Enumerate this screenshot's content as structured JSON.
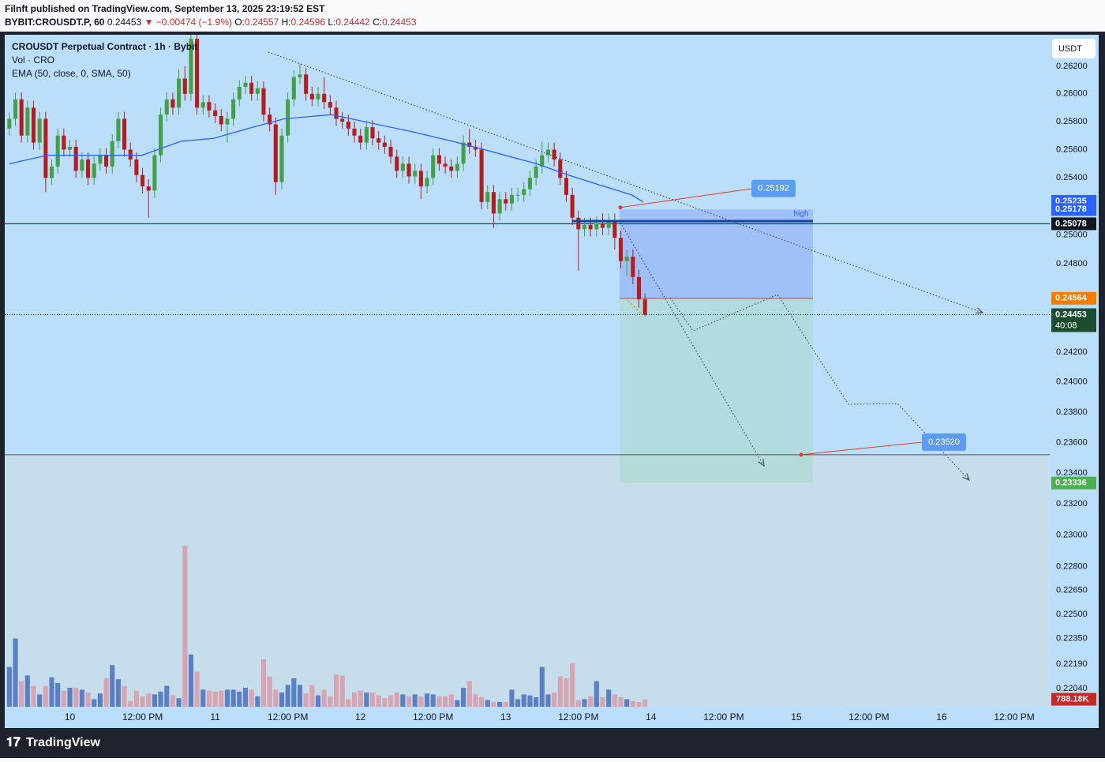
{
  "header": {
    "publisher": "Filnft published on TradingView.com, September 13, 2025 23:19:52 EST",
    "symbol": "BYBIT:CROUSDT.P, 60",
    "last": "0.24453",
    "arrow": "▼",
    "change": "−0.00474 (−1.9%)",
    "ohlc": [
      [
        "O:",
        "0.24557"
      ],
      [
        "H:",
        "0.24596"
      ],
      [
        "L:",
        "0.24442"
      ],
      [
        "C:",
        "0.24453"
      ]
    ]
  },
  "footer": {
    "brand": "TradingView"
  },
  "chart_data": {
    "type": "candlestick",
    "title": "CROUSDT Perpetual Contract · 1h · Bybit",
    "legend_lines": [
      "Vol · CRO",
      "EMA (50, close, 0, SMA, 50)"
    ],
    "currency": "USDT",
    "up_color": "#43a047",
    "down_color": "#b71c1c",
    "x": [
      0,
      1,
      2,
      3,
      4,
      5,
      6,
      7,
      8,
      9,
      10,
      11,
      12,
      13,
      14,
      15,
      16,
      17,
      18,
      19,
      20,
      21,
      22,
      23,
      24,
      25,
      26,
      27,
      28,
      29,
      30,
      31,
      32,
      33,
      34,
      35,
      36,
      37,
      38,
      39,
      40,
      41,
      42,
      43,
      44,
      45,
      46,
      47,
      48,
      49,
      50,
      51,
      52,
      53,
      54,
      55,
      56,
      57,
      58,
      59,
      60,
      61,
      62,
      63,
      64,
      65,
      66,
      67,
      68,
      69,
      70,
      71,
      72,
      73,
      74,
      75,
      76,
      77,
      78,
      79,
      80,
      81,
      82,
      83,
      84,
      85,
      86,
      87,
      88,
      89,
      90,
      91,
      92,
      93,
      94,
      95,
      96,
      97,
      98,
      99,
      100,
      101,
      102,
      103,
      104,
      105
    ],
    "open": [
      0.2575,
      0.2582,
      0.2596,
      0.257,
      0.259,
      0.2565,
      0.2582,
      0.254,
      0.2548,
      0.257,
      0.256,
      0.2562,
      0.2545,
      0.2553,
      0.254,
      0.255,
      0.2556,
      0.2548,
      0.2566,
      0.2582,
      0.256,
      0.2553,
      0.2542,
      0.2534,
      0.2531,
      0.2556,
      0.2585,
      0.2596,
      0.259,
      0.2611,
      0.26,
      0.264,
      0.259,
      0.2594,
      0.2588,
      0.2584,
      0.2578,
      0.2582,
      0.2596,
      0.2605,
      0.2608,
      0.26,
      0.2604,
      0.2585,
      0.2578,
      0.2537,
      0.257,
      0.2596,
      0.2612,
      0.2614,
      0.26,
      0.2596,
      0.26,
      0.2594,
      0.259,
      0.2582,
      0.258,
      0.2575,
      0.257,
      0.2565,
      0.2576,
      0.2568,
      0.2565,
      0.2562,
      0.2555,
      0.2545,
      0.255,
      0.2541,
      0.2545,
      0.2534,
      0.254,
      0.2556,
      0.255,
      0.2548,
      0.2545,
      0.255,
      0.2565,
      0.2562,
      0.256,
      0.2523,
      0.253,
      0.2515,
      0.2525,
      0.2522,
      0.2528,
      0.2528,
      0.2532,
      0.254,
      0.2548,
      0.2556,
      0.256,
      0.2553,
      0.254,
      0.2528,
      0.2512,
      0.2504,
      0.2507,
      0.2504,
      0.2508,
      0.2505,
      0.251,
      0.2498,
      0.2482,
      0.2485,
      0.2471,
      0.24557
    ],
    "high": [
      0.2587,
      0.2601,
      0.2601,
      0.2595,
      0.2595,
      0.2587,
      0.2587,
      0.2553,
      0.2575,
      0.2575,
      0.2567,
      0.2567,
      0.2558,
      0.2558,
      0.2555,
      0.2561,
      0.2561,
      0.2571,
      0.2587,
      0.2587,
      0.2565,
      0.2558,
      0.2547,
      0.2539,
      0.2561,
      0.259,
      0.2601,
      0.2601,
      0.2618,
      0.262,
      0.265,
      0.2645,
      0.2599,
      0.2599,
      0.2593,
      0.2589,
      0.2587,
      0.2601,
      0.261,
      0.2613,
      0.2613,
      0.2609,
      0.2609,
      0.259,
      0.2583,
      0.2575,
      0.2601,
      0.2617,
      0.2622,
      0.2619,
      0.2605,
      0.2605,
      0.2612,
      0.2599,
      0.2595,
      0.2587,
      0.2585,
      0.258,
      0.2575,
      0.2581,
      0.2581,
      0.2573,
      0.257,
      0.2567,
      0.256,
      0.2555,
      0.2555,
      0.255,
      0.255,
      0.2545,
      0.2561,
      0.2561,
      0.2555,
      0.2553,
      0.2555,
      0.257,
      0.2575,
      0.2567,
      0.2565,
      0.2535,
      0.2535,
      0.253,
      0.253,
      0.2533,
      0.2533,
      0.2537,
      0.2545,
      0.2553,
      0.2566,
      0.2565,
      0.2565,
      0.2558,
      0.2545,
      0.2533,
      0.2517,
      0.2512,
      0.2512,
      0.2513,
      0.2515,
      0.2515,
      0.2515,
      0.2503,
      0.249,
      0.249,
      0.2476,
      0.24596
    ],
    "low": [
      0.257,
      0.2577,
      0.2565,
      0.2565,
      0.256,
      0.256,
      0.253,
      0.2535,
      0.2543,
      0.2555,
      0.2555,
      0.254,
      0.254,
      0.2535,
      0.2535,
      0.2545,
      0.2543,
      0.2543,
      0.2561,
      0.2555,
      0.2548,
      0.2537,
      0.2529,
      0.2512,
      0.2526,
      0.2551,
      0.258,
      0.2585,
      0.2585,
      0.2595,
      0.2595,
      0.2585,
      0.2585,
      0.2583,
      0.2579,
      0.2573,
      0.2565,
      0.2577,
      0.2591,
      0.26,
      0.2595,
      0.2595,
      0.258,
      0.2573,
      0.2528,
      0.2532,
      0.2565,
      0.2591,
      0.2607,
      0.2595,
      0.2591,
      0.2591,
      0.2589,
      0.2585,
      0.2577,
      0.2575,
      0.257,
      0.2565,
      0.256,
      0.256,
      0.2563,
      0.256,
      0.2557,
      0.255,
      0.254,
      0.254,
      0.2536,
      0.2536,
      0.2525,
      0.2529,
      0.2535,
      0.2545,
      0.2543,
      0.254,
      0.254,
      0.2545,
      0.2557,
      0.2555,
      0.2518,
      0.2518,
      0.2505,
      0.251,
      0.2517,
      0.2517,
      0.2523,
      0.2523,
      0.2527,
      0.2535,
      0.2543,
      0.2551,
      0.2548,
      0.2535,
      0.2523,
      0.2507,
      0.2475,
      0.2499,
      0.2499,
      0.2499,
      0.25,
      0.25,
      0.249,
      0.2477,
      0.2472,
      0.2466,
      0.245,
      0.24442
    ],
    "close": [
      0.2582,
      0.2596,
      0.257,
      0.259,
      0.2565,
      0.2582,
      0.254,
      0.2548,
      0.257,
      0.256,
      0.2562,
      0.2545,
      0.2553,
      0.254,
      0.255,
      0.2556,
      0.2548,
      0.2566,
      0.2582,
      0.256,
      0.2553,
      0.2542,
      0.2534,
      0.2531,
      0.2556,
      0.2585,
      0.2596,
      0.259,
      0.2611,
      0.26,
      0.264,
      0.259,
      0.2594,
      0.2588,
      0.2584,
      0.2578,
      0.2582,
      0.2596,
      0.2605,
      0.2608,
      0.26,
      0.2604,
      0.2585,
      0.2578,
      0.2537,
      0.257,
      0.2596,
      0.2612,
      0.2614,
      0.26,
      0.2596,
      0.26,
      0.2594,
      0.259,
      0.2582,
      0.258,
      0.2575,
      0.257,
      0.2565,
      0.2576,
      0.2568,
      0.2565,
      0.2562,
      0.2555,
      0.2545,
      0.255,
      0.2541,
      0.2545,
      0.2534,
      0.254,
      0.2556,
      0.255,
      0.2548,
      0.2545,
      0.255,
      0.2565,
      0.2562,
      0.256,
      0.2523,
      0.253,
      0.2515,
      0.2525,
      0.2522,
      0.2528,
      0.2528,
      0.2532,
      0.254,
      0.2548,
      0.2556,
      0.256,
      0.2553,
      0.254,
      0.2528,
      0.2512,
      0.2504,
      0.2507,
      0.2504,
      0.2508,
      0.2505,
      0.251,
      0.2498,
      0.2482,
      0.2485,
      0.2471,
      0.24557,
      0.24453
    ],
    "ema": {
      "color": "#2962ff",
      "x": [
        0,
        6.3,
        14,
        21.9,
        28.4,
        33.7,
        40.2,
        45.4,
        53.2,
        59.7,
        66.3,
        74.1,
        79.3,
        87.1,
        92.3,
        97.5,
        102.8,
        104.7
      ],
      "values": [
        0.255,
        0.2556,
        0.2556,
        0.2556,
        0.2566,
        0.2568,
        0.2576,
        0.2582,
        0.2585,
        0.2579,
        0.2573,
        0.2565,
        0.2559,
        0.255,
        0.2542,
        0.2535,
        0.2528,
        0.2523
      ]
    },
    "volume": {
      "up_color": "#5b7fc4",
      "down_color": "#d7a4b2",
      "ylim": [
        0,
        25000
      ],
      "values": [
        4200,
        7200,
        2700,
        3300,
        2200,
        1300,
        2200,
        3100,
        2500,
        1700,
        2000,
        2000,
        1800,
        1500,
        800,
        1400,
        3000,
        4400,
        2900,
        2200,
        600,
        1700,
        1100,
        1400,
        1300,
        1600,
        2200,
        1200,
        900,
        17000,
        5500,
        3700,
        1800,
        1700,
        1600,
        1700,
        1800,
        1800,
        1600,
        2000,
        1800,
        1100,
        5000,
        3200,
        1800,
        1500,
        2300,
        3000,
        2300,
        1400,
        2300,
        1200,
        1800,
        1100,
        3400,
        3300,
        800,
        1500,
        1700,
        1500,
        1500,
        1200,
        900,
        1200,
        1500,
        1300,
        1100,
        1300,
        1100,
        1400,
        1300,
        1100,
        1100,
        1300,
        700,
        2000,
        2700,
        1300,
        1000,
        700,
        500,
        500,
        500,
        1800,
        800,
        1300,
        1200,
        1000,
        4200,
        1300,
        1500,
        3200,
        3000,
        4600,
        700,
        800,
        1100,
        2700,
        1000,
        1800,
        1300,
        1000,
        800,
        600,
        500,
        788.18
      ]
    },
    "volume_badge": {
      "value": 788.18,
      "label": "788.18K",
      "color": "#c62828"
    },
    "log": true,
    "grid": false,
    "ylim": [
      0.2193,
      0.2643
    ],
    "yticks": [
      {
        "value": 0.262,
        "label": "0.26200"
      },
      {
        "value": 0.26,
        "label": "0.26000"
      },
      {
        "value": 0.258,
        "label": "0.25800"
      },
      {
        "value": 0.256,
        "label": "0.25600"
      },
      {
        "value": 0.254,
        "label": "0.25400"
      },
      {
        "value": 0.25,
        "label": "0.25000"
      },
      {
        "value": 0.248,
        "label": "0.24800"
      },
      {
        "value": 0.242,
        "label": "0.24200"
      },
      {
        "value": 0.24,
        "label": "0.24000"
      },
      {
        "value": 0.238,
        "label": "0.23800"
      },
      {
        "value": 0.236,
        "label": "0.23600"
      },
      {
        "value": 0.234,
        "label": "0.23400"
      },
      {
        "value": 0.232,
        "label": "0.23200"
      },
      {
        "value": 0.23,
        "label": "0.23000"
      },
      {
        "value": 0.228,
        "label": "0.22800"
      },
      {
        "value": 0.2265,
        "label": "0.22650"
      },
      {
        "value": 0.225,
        "label": "0.22500"
      },
      {
        "value": 0.2235,
        "label": "0.22350"
      },
      {
        "value": 0.2219,
        "label": "0.22190"
      },
      {
        "value": 0.2204,
        "label": "0.22040"
      }
    ],
    "xlim": [
      -0.5,
      171.86
    ],
    "xticks": [
      10,
      {
        "value": 22,
        "label": "12:00 PM"
      },
      {
        "value": 34,
        "label": "11"
      },
      {
        "value": 46,
        "label": "12:00 PM"
      },
      {
        "value": 58,
        "label": "12"
      },
      {
        "value": 70,
        "label": "12:00 PM"
      },
      {
        "value": 82,
        "label": "13"
      },
      {
        "value": 94,
        "label": "12:00 PM"
      },
      {
        "value": 106,
        "label": "14"
      },
      {
        "value": 118,
        "label": "12:00 PM"
      },
      {
        "value": 130,
        "label": "15"
      },
      {
        "value": 142,
        "label": "12:00 PM"
      },
      {
        "value": 154,
        "label": "16"
      },
      {
        "value": 166,
        "label": "12:00 PM"
      }
    ],
    "price_badges": [
      {
        "value": 0.25235,
        "color": "#2962ff"
      },
      {
        "value": 0.25178,
        "color": "#2962ff"
      },
      {
        "value": 0.25078,
        "color": "#131722"
      },
      {
        "value": 0.24564,
        "color": "#f57c00"
      },
      {
        "value": 0.24453,
        "color": "#1b4d2e",
        "countdown": "40:08"
      },
      {
        "value": 0.23336,
        "color": "#4caf50"
      }
    ],
    "callouts": [
      0.25192,
      {
        "value": 0.2352,
        "label": "0.23520"
      }
    ],
    "high_label": "high"
  }
}
